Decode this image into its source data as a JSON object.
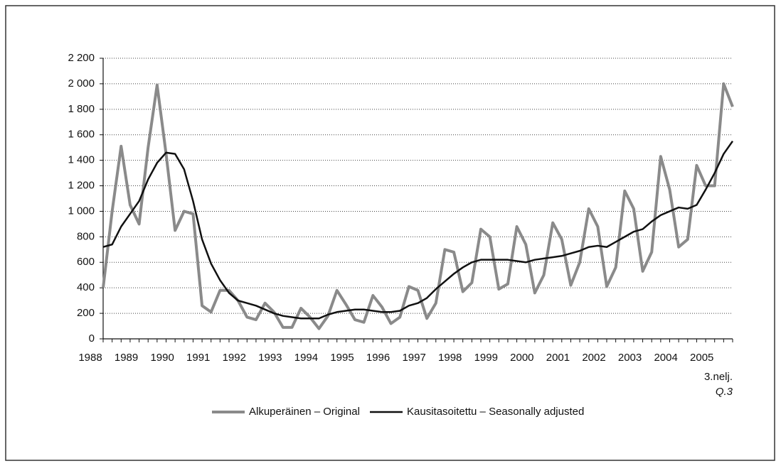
{
  "chart_data": {
    "type": "line",
    "categories": [
      "1988",
      null,
      null,
      null,
      "1989",
      null,
      null,
      null,
      "1990",
      null,
      null,
      null,
      "1991",
      null,
      null,
      null,
      "1992",
      null,
      null,
      null,
      "1993",
      null,
      null,
      null,
      "1994",
      null,
      null,
      null,
      "1995",
      null,
      null,
      null,
      "1996",
      null,
      null,
      null,
      "1997",
      null,
      null,
      null,
      "1998",
      null,
      null,
      null,
      "1999",
      null,
      null,
      null,
      "2000",
      null,
      null,
      null,
      "2001",
      null,
      null,
      null,
      "2002",
      null,
      null,
      null,
      "2003",
      null,
      null,
      null,
      "2004",
      null,
      null,
      null,
      "2005",
      null,
      null
    ],
    "series": [
      {
        "name": "Alkuperäinen – Original",
        "color": "#8a8a8a",
        "values": [
          400,
          1000,
          1510,
          1050,
          900,
          1500,
          1990,
          1450,
          850,
          1000,
          980,
          260,
          210,
          380,
          380,
          300,
          170,
          150,
          280,
          210,
          90,
          90,
          240,
          170,
          80,
          180,
          380,
          270,
          150,
          130,
          340,
          250,
          120,
          170,
          410,
          380,
          160,
          280,
          700,
          680,
          370,
          440,
          860,
          800,
          390,
          430,
          880,
          740,
          360,
          500,
          910,
          780,
          420,
          600,
          1020,
          880,
          410,
          560,
          1160,
          1020,
          530,
          680,
          1430,
          1170,
          720,
          780,
          1360,
          1200,
          1200,
          2000,
          1820
        ]
      },
      {
        "name": "Kausitasoitettu – Seasonally adjusted",
        "color": "#111111",
        "values": [
          720,
          740,
          880,
          980,
          1080,
          1250,
          1380,
          1460,
          1450,
          1330,
          1080,
          780,
          590,
          460,
          360,
          300,
          280,
          260,
          230,
          200,
          180,
          170,
          160,
          160,
          160,
          190,
          210,
          220,
          230,
          230,
          220,
          210,
          210,
          220,
          260,
          280,
          320,
          390,
          450,
          510,
          560,
          600,
          620,
          620,
          620,
          620,
          610,
          600,
          620,
          630,
          640,
          650,
          670,
          690,
          720,
          730,
          720,
          760,
          800,
          840,
          860,
          920,
          970,
          1000,
          1030,
          1020,
          1050,
          1170,
          1300,
          1450,
          1550
        ]
      }
    ],
    "annotations": [
      "3.nelj.",
      "Q.3"
    ],
    "ylim": [
      0,
      2200
    ],
    "yticks": [
      0,
      200,
      400,
      600,
      800,
      {
        "value": 1000,
        "label": "1 000"
      },
      {
        "value": 1200,
        "label": "1 200"
      },
      {
        "value": 1400,
        "label": "1 400"
      },
      {
        "value": 1600,
        "label": "1 600"
      },
      {
        "value": 1800,
        "label": "1 800"
      },
      {
        "value": 2000,
        "label": "2 000"
      },
      {
        "value": 2200,
        "label": "2 200"
      }
    ],
    "grid": true
  }
}
